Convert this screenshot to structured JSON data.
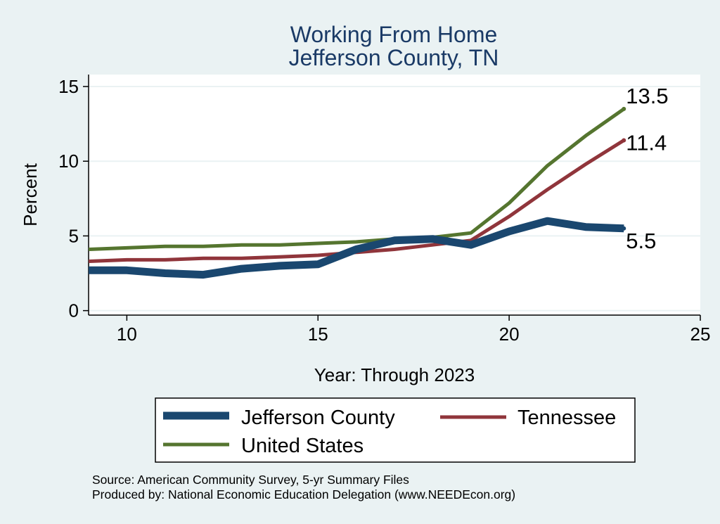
{
  "chart_data": {
    "type": "line",
    "title": [
      "Working From Home",
      "Jefferson County, TN"
    ],
    "xlabel": "Year: Through 2023",
    "ylabel": "Percent",
    "xlim": [
      9,
      25
    ],
    "ylim": [
      -0.3,
      15.8
    ],
    "xticks": [
      10,
      15,
      20,
      25
    ],
    "yticks": [
      0,
      5,
      10,
      15
    ],
    "grid": true,
    "series": [
      {
        "name": "Jefferson County",
        "color": "#1a476f",
        "x": [
          9,
          10,
          11,
          12,
          13,
          14,
          15,
          16,
          17,
          18,
          19,
          20,
          21,
          22,
          23
        ],
        "values": [
          2.7,
          2.7,
          2.5,
          2.4,
          2.8,
          3.0,
          3.1,
          4.1,
          4.7,
          4.8,
          4.4,
          5.3,
          6.0,
          5.6,
          5.5
        ],
        "end_label": "5.5"
      },
      {
        "name": "Tennessee",
        "color": "#90353b",
        "x": [
          9,
          10,
          11,
          12,
          13,
          14,
          15,
          16,
          17,
          18,
          19,
          20,
          21,
          22,
          23
        ],
        "values": [
          3.3,
          3.4,
          3.4,
          3.5,
          3.5,
          3.6,
          3.7,
          3.9,
          4.1,
          4.4,
          4.7,
          6.3,
          8.1,
          9.8,
          11.4
        ],
        "end_label": "11.4"
      },
      {
        "name": "United States",
        "color": "#55752f",
        "x": [
          9,
          10,
          11,
          12,
          13,
          14,
          15,
          16,
          17,
          18,
          19,
          20,
          21,
          22,
          23
        ],
        "values": [
          4.1,
          4.2,
          4.3,
          4.3,
          4.4,
          4.4,
          4.5,
          4.6,
          4.8,
          4.9,
          5.2,
          7.2,
          9.7,
          11.7,
          13.5
        ],
        "end_label": "13.5"
      }
    ],
    "legend": {
      "placement": "bottom",
      "entries": [
        "Jefferson County",
        "Tennessee",
        "United States"
      ]
    },
    "notes": [
      "Source: American Community Survey, 5-yr Summary Files",
      "Produced by: National Economic Education Delegation (www.NEEDEcon.org)"
    ]
  }
}
